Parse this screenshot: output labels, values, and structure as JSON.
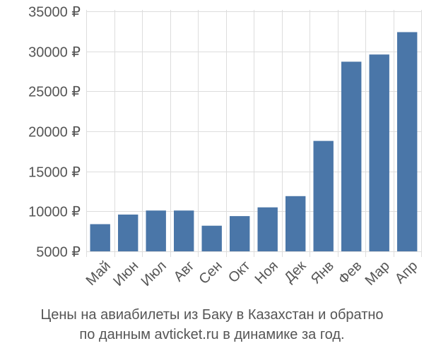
{
  "chart_data": {
    "type": "bar",
    "categories": [
      "Май",
      "Июн",
      "Июл",
      "Авг",
      "Сен",
      "Окт",
      "Ноя",
      "Дек",
      "Янв",
      "Фев",
      "Мар",
      "Апр"
    ],
    "values": [
      8400,
      9600,
      10100,
      10100,
      8200,
      9400,
      10500,
      11900,
      18800,
      28700,
      29600,
      32400
    ],
    "ylim": [
      5000,
      35000
    ],
    "yticks": [
      5000,
      10000,
      15000,
      20000,
      25000,
      30000,
      35000
    ],
    "ytick_labels": [
      "5000 ₽",
      "10000 ₽",
      "15000 ₽",
      "20000 ₽",
      "25000 ₽",
      "30000 ₽",
      "35000 ₽"
    ],
    "grid": true,
    "bar_color": "#4a76a8",
    "caption_lines": [
      "Цены на авиабилеты из Баку в Казахстан и обратно",
      "по данным avticket.ru в динамике за год."
    ]
  }
}
